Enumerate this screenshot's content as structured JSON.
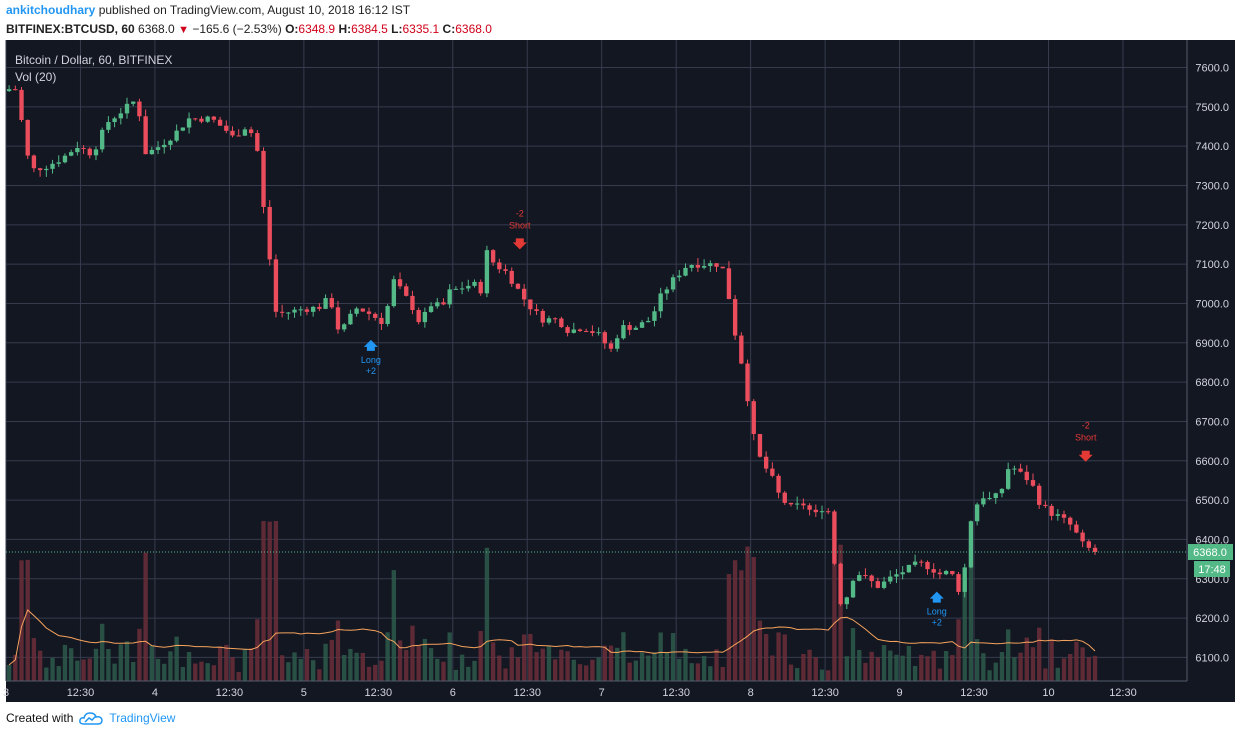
{
  "header": {
    "author": "ankitchoudhary",
    "published_text": "published on TradingView.com, August 10, 2018 16:12 IST"
  },
  "info": {
    "symbol": "BITFINEX:BTCUSD, 60",
    "last": "6368.0",
    "change": "−165.6 (−2.53%)",
    "o_label": "O:",
    "o_val": "6348.9",
    "h_label": "H:",
    "h_val": "6384.5",
    "l_label": "L:",
    "l_val": "6335.1",
    "c_label": "C:",
    "c_val": "6368.0"
  },
  "legend": {
    "title": "Bitcoin / Dollar, 60, BITFINEX",
    "vol": "Vol (20)"
  },
  "price_badge": "6368.0",
  "time_badge": "17:48",
  "annotations": [
    {
      "label1": "-2",
      "label2": "Short",
      "type": "short",
      "x": 6.45,
      "y": 7135
    },
    {
      "label1": "Long",
      "label2": "+2",
      "type": "long",
      "x": 5.45,
      "y": 6915
    },
    {
      "label1": "Long",
      "label2": "+2",
      "type": "long",
      "x": 9.25,
      "y": 6275
    },
    {
      "label1": "-2",
      "label2": "Short",
      "type": "short",
      "x": 10.25,
      "y": 6595
    }
  ],
  "footer": {
    "created_with": "Created with",
    "brand": "TradingView"
  },
  "colors": {
    "bg": "#131722",
    "up": "#53b987",
    "down": "#eb4d5c",
    "grid": "#363c4e",
    "text": "#d1d4dc",
    "ma": "#f7a35c",
    "annotation_short": "#e53935",
    "annotation_long": "#2196f3"
  },
  "chart_data": {
    "type": "candlestick",
    "title": "Bitcoin / Dollar, 60, BITFINEX",
    "ylim": [
      6040,
      7670
    ],
    "y_ticks": [
      6100,
      6200,
      6300,
      6400,
      6500,
      6600,
      6700,
      6800,
      6900,
      7000,
      7100,
      7200,
      7300,
      7400,
      7500,
      7600
    ],
    "y_tick_labels": [
      "6100.0",
      "6200.0",
      "6300.0",
      "6400.0",
      "6500.0",
      "6600.0",
      "6700.0",
      "6800.0",
      "6900.0",
      "7000.0",
      "7100.0",
      "7200.0",
      "7300.0",
      "7400.0",
      "7500.0",
      "7600.0"
    ],
    "x_ticks": [
      {
        "t": 3.0,
        "label": "3"
      },
      {
        "t": 3.5,
        "label": "12:30"
      },
      {
        "t": 4.0,
        "label": "4"
      },
      {
        "t": 4.5,
        "label": "12:30"
      },
      {
        "t": 5.0,
        "label": "5"
      },
      {
        "t": 5.5,
        "label": "12:30"
      },
      {
        "t": 6.0,
        "label": "6"
      },
      {
        "t": 6.5,
        "label": "12:30"
      },
      {
        "t": 7.0,
        "label": "7"
      },
      {
        "t": 7.5,
        "label": "12:30"
      },
      {
        "t": 8.0,
        "label": "8"
      },
      {
        "t": 8.5,
        "label": "12:30"
      },
      {
        "t": 9.0,
        "label": "9"
      },
      {
        "t": 9.5,
        "label": "12:30"
      },
      {
        "t": 10.0,
        "label": "10"
      },
      {
        "t": 10.5,
        "label": "12:30"
      }
    ],
    "xlim": [
      3.0,
      10.93
    ],
    "last_price": 6368.0,
    "anchors": [
      [
        3.0,
        7540
      ],
      [
        3.08,
        7550
      ],
      [
        3.12,
        7480
      ],
      [
        3.15,
        7390
      ],
      [
        3.2,
        7340
      ],
      [
        3.3,
        7350
      ],
      [
        3.4,
        7370
      ],
      [
        3.5,
        7400
      ],
      [
        3.6,
        7380
      ],
      [
        3.7,
        7460
      ],
      [
        3.8,
        7490
      ],
      [
        3.9,
        7520
      ],
      [
        3.96,
        7380
      ],
      [
        4.05,
        7400
      ],
      [
        4.15,
        7430
      ],
      [
        4.25,
        7470
      ],
      [
        4.4,
        7470
      ],
      [
        4.5,
        7440
      ],
      [
        4.55,
        7420
      ],
      [
        4.62,
        7450
      ],
      [
        4.68,
        7430
      ],
      [
        4.72,
        7370
      ],
      [
        4.76,
        7200
      ],
      [
        4.8,
        7090
      ],
      [
        4.82,
        6980
      ],
      [
        4.88,
        6975
      ],
      [
        5.0,
        6985
      ],
      [
        5.12,
        6990
      ],
      [
        5.18,
        7010
      ],
      [
        5.22,
        6990
      ],
      [
        5.26,
        6920
      ],
      [
        5.32,
        6960
      ],
      [
        5.38,
        6990
      ],
      [
        5.48,
        6970
      ],
      [
        5.56,
        6950
      ],
      [
        5.62,
        7060
      ],
      [
        5.68,
        7030
      ],
      [
        5.75,
        6990
      ],
      [
        5.8,
        6950
      ],
      [
        5.88,
        7000
      ],
      [
        5.95,
        6990
      ],
      [
        6.0,
        7030
      ],
      [
        6.08,
        7040
      ],
      [
        6.16,
        7050
      ],
      [
        6.22,
        7030
      ],
      [
        6.25,
        7130
      ],
      [
        6.3,
        7100
      ],
      [
        6.38,
        7080
      ],
      [
        6.45,
        7040
      ],
      [
        6.52,
        7000
      ],
      [
        6.62,
        6960
      ],
      [
        6.72,
        6960
      ],
      [
        6.8,
        6930
      ],
      [
        6.9,
        6940
      ],
      [
        7.0,
        6920
      ],
      [
        7.08,
        6880
      ],
      [
        7.15,
        6940
      ],
      [
        7.25,
        6940
      ],
      [
        7.35,
        6960
      ],
      [
        7.42,
        7020
      ],
      [
        7.5,
        7060
      ],
      [
        7.6,
        7100
      ],
      [
        7.7,
        7100
      ],
      [
        7.8,
        7100
      ],
      [
        7.85,
        7080
      ],
      [
        7.9,
        6950
      ],
      [
        7.95,
        6870
      ],
      [
        8.0,
        6760
      ],
      [
        8.05,
        6640
      ],
      [
        8.1,
        6590
      ],
      [
        8.15,
        6570
      ],
      [
        8.2,
        6520
      ],
      [
        8.28,
        6480
      ],
      [
        8.38,
        6490
      ],
      [
        8.45,
        6460
      ],
      [
        8.5,
        6480
      ],
      [
        8.55,
        6470
      ],
      [
        8.58,
        6350
      ],
      [
        8.62,
        6240
      ],
      [
        8.68,
        6260
      ],
      [
        8.72,
        6320
      ],
      [
        8.8,
        6300
      ],
      [
        8.88,
        6280
      ],
      [
        8.95,
        6300
      ],
      [
        9.05,
        6320
      ],
      [
        9.15,
        6340
      ],
      [
        9.22,
        6330
      ],
      [
        9.3,
        6310
      ],
      [
        9.36,
        6320
      ],
      [
        9.4,
        6290
      ],
      [
        9.44,
        6250
      ],
      [
        9.48,
        6420
      ],
      [
        9.52,
        6480
      ],
      [
        9.58,
        6510
      ],
      [
        9.64,
        6500
      ],
      [
        9.7,
        6520
      ],
      [
        9.75,
        6580
      ],
      [
        9.8,
        6580
      ],
      [
        9.85,
        6560
      ],
      [
        9.9,
        6550
      ],
      [
        9.95,
        6500
      ],
      [
        10.02,
        6470
      ],
      [
        10.08,
        6460
      ],
      [
        10.12,
        6450
      ],
      [
        10.16,
        6440
      ],
      [
        10.2,
        6420
      ],
      [
        10.24,
        6390
      ],
      [
        10.28,
        6380
      ],
      [
        10.32,
        6368
      ]
    ],
    "volume_ma_level": "approximately constant, spiking on sell-offs"
  }
}
